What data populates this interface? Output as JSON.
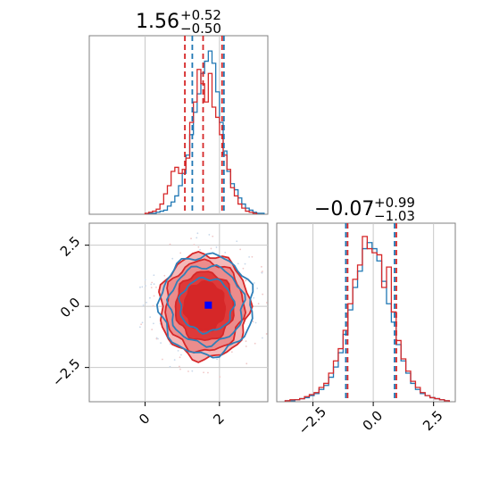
{
  "chart_data": [
    {
      "type": "histogram",
      "panel": "marginal-x",
      "title": {
        "median": "1.56",
        "upper": "+0.52",
        "lower": "−0.50"
      },
      "xlim": [
        -1.5,
        3.3
      ],
      "quantile_lines": {
        "blue": [
          1.27,
          2.12
        ],
        "red": [
          1.07,
          1.56,
          2.07
        ]
      },
      "series": [
        {
          "color": "#1f77b4",
          "bin_centers": [
            0.15,
            0.25,
            0.35,
            0.45,
            0.55,
            0.65,
            0.75,
            0.85,
            0.95,
            1.05,
            1.15,
            1.25,
            1.35,
            1.45,
            1.55,
            1.65,
            1.75,
            1.85,
            1.95,
            2.05,
            2.15,
            2.25,
            2.35,
            2.45,
            2.55,
            2.65,
            2.75,
            2.85,
            2.95,
            3.05,
            3.15
          ],
          "values": [
            1,
            1,
            2,
            3,
            4,
            8,
            12,
            18,
            28,
            40,
            58,
            78,
            100,
            118,
            138,
            150,
            160,
            148,
            120,
            90,
            62,
            42,
            30,
            24,
            16,
            10,
            6,
            4,
            2,
            1,
            1
          ]
        },
        {
          "color": "#d62728",
          "bin_centers": [
            0.05,
            0.15,
            0.25,
            0.35,
            0.45,
            0.55,
            0.65,
            0.75,
            0.85,
            0.95,
            1.05,
            1.15,
            1.25,
            1.35,
            1.45,
            1.55,
            1.65,
            1.75,
            1.85,
            1.95,
            2.05,
            2.15,
            2.25,
            2.35,
            2.45,
            2.55,
            2.65,
            2.75,
            2.85,
            2.95
          ],
          "values": [
            1,
            2,
            3,
            5,
            10,
            20,
            28,
            42,
            46,
            40,
            44,
            55,
            90,
            110,
            142,
            128,
            110,
            138,
            105,
            95,
            78,
            58,
            44,
            26,
            18,
            10,
            6,
            3,
            2,
            1
          ]
        }
      ]
    },
    {
      "type": "contour",
      "panel": "joint",
      "xlim": [
        -1.5,
        3.3
      ],
      "ylim": [
        -3.9,
        3.4
      ],
      "xticks": [
        "0",
        "2"
      ],
      "yticks": [
        "2.5",
        "0.0",
        "−2.5"
      ],
      "center_marker": {
        "color": "#0000ff",
        "x": 1.7,
        "y": 0.05
      },
      "red_contours": [
        {
          "rx": 1.2,
          "ry": 2.15,
          "fill": "#f4b8b8"
        },
        {
          "rx": 1.05,
          "ry": 1.85,
          "fill": "#ec8c8c"
        },
        {
          "rx": 0.78,
          "ry": 1.4,
          "fill": "#de3a3a"
        },
        {
          "rx": 0.55,
          "ry": 1.0,
          "fill": "#d62728"
        }
      ],
      "blue_contours": [
        {
          "rx": 1.25,
          "ry": 2.05
        },
        {
          "rx": 1.0,
          "ry": 1.6
        },
        {
          "rx": 0.72,
          "ry": 1.1
        }
      ],
      "center": {
        "x": 1.6,
        "y": 0.0
      }
    },
    {
      "type": "histogram",
      "panel": "marginal-y",
      "title": {
        "median": "−0.07",
        "upper": "+0.99",
        "lower": "−1.03"
      },
      "xlim": [
        -4.0,
        3.4
      ],
      "xticks": [
        "−2.5",
        "0.0",
        "2.5"
      ],
      "quantile_lines": {
        "blue": [
          -1.1,
          0.92
        ],
        "red": [
          -1.1,
          0.92
        ]
      },
      "series": [
        {
          "color": "#1f77b4",
          "bin_centers": [
            -3.55,
            -3.35,
            -3.15,
            -2.95,
            -2.75,
            -2.55,
            -2.35,
            -2.15,
            -1.95,
            -1.75,
            -1.55,
            -1.35,
            -1.15,
            -0.95,
            -0.75,
            -0.55,
            -0.35,
            -0.15,
            0.05,
            0.25,
            0.45,
            0.65,
            0.85,
            1.05,
            1.25,
            1.45,
            1.65,
            1.85,
            2.05,
            2.25,
            2.45,
            2.65,
            2.85,
            3.05
          ],
          "values": [
            1,
            1,
            2,
            3,
            4,
            6,
            8,
            12,
            16,
            24,
            34,
            48,
            66,
            90,
            112,
            128,
            150,
            156,
            150,
            138,
            118,
            96,
            78,
            56,
            40,
            28,
            18,
            12,
            8,
            6,
            4,
            3,
            2,
            1
          ]
        },
        {
          "color": "#d62728",
          "bin_centers": [
            -3.55,
            -3.35,
            -3.15,
            -2.95,
            -2.75,
            -2.55,
            -2.35,
            -2.15,
            -1.95,
            -1.75,
            -1.55,
            -1.35,
            -1.15,
            -0.95,
            -0.75,
            -0.55,
            -0.35,
            -0.15,
            0.05,
            0.25,
            0.45,
            0.65,
            0.85,
            1.05,
            1.25,
            1.45,
            1.65,
            1.85,
            2.05,
            2.25,
            2.45,
            2.65,
            2.85,
            3.05
          ],
          "values": [
            1,
            2,
            2,
            3,
            5,
            7,
            9,
            14,
            18,
            28,
            40,
            52,
            70,
            96,
            120,
            134,
            162,
            150,
            146,
            144,
            112,
            132,
            88,
            60,
            42,
            30,
            20,
            14,
            9,
            6,
            4,
            3,
            2,
            1
          ]
        }
      ]
    }
  ]
}
